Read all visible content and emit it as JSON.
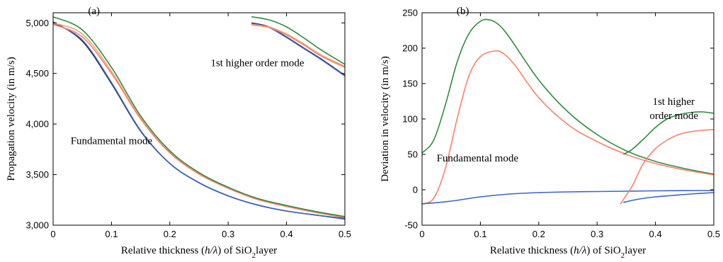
{
  "colors": {
    "black": "#1a1a2e",
    "red": "#ff7f6a",
    "orange": "#f5a46f",
    "green": "#2e8b3e",
    "blue": "#3a66c4"
  },
  "chart_data": [
    {
      "type": "line",
      "panel_label": "(a)",
      "xlabel": {
        "pre": "Relative thickness (",
        "var": "h/λ",
        "post": ") of SiO",
        "sub": "2",
        "tail": "layer"
      },
      "ylabel": "Propagation velocity (in m/s)",
      "xlim": [
        0,
        0.5
      ],
      "ylim": [
        3000,
        5100
      ],
      "xticks": [
        0,
        0.1,
        0.2,
        0.3,
        0.4,
        0.5
      ],
      "xtick_labels": [
        "0",
        "0.1",
        "0.2",
        "0.3",
        "0.4",
        "0.5"
      ],
      "yticks": [
        3000,
        3500,
        4000,
        4500,
        5000
      ],
      "ytick_labels": [
        "3,000",
        "3,500",
        "4,000",
        "4,500",
        "5,000"
      ],
      "annotations": [
        {
          "text": "1st higher order mode",
          "x": 0.27,
          "y": 4570
        },
        {
          "text": "Fundamental mode",
          "x": 0.03,
          "y": 3800
        }
      ],
      "series": [
        {
          "color": "black",
          "group": "fundamental",
          "x": [
            0,
            0.05,
            0.1,
            0.15,
            0.2,
            0.25,
            0.3,
            0.35,
            0.4,
            0.45,
            0.5
          ],
          "y": [
            5010,
            4820,
            4400,
            3930,
            3610,
            3420,
            3290,
            3200,
            3140,
            3100,
            3065
          ]
        },
        {
          "color": "blue",
          "group": "fundamental",
          "x": [
            0,
            0.05,
            0.1,
            0.15,
            0.2,
            0.25,
            0.3,
            0.35,
            0.4,
            0.45,
            0.5
          ],
          "y": [
            5000,
            4830,
            4410,
            3935,
            3610,
            3420,
            3290,
            3200,
            3140,
            3100,
            3060
          ]
        },
        {
          "color": "orange",
          "group": "fundamental",
          "x": [
            0,
            0.05,
            0.1,
            0.15,
            0.2,
            0.25,
            0.3,
            0.35,
            0.4,
            0.45,
            0.5
          ],
          "y": [
            5000,
            4890,
            4520,
            4060,
            3720,
            3510,
            3370,
            3260,
            3190,
            3130,
            3080
          ]
        },
        {
          "color": "red",
          "group": "fundamental",
          "x": [
            0,
            0.05,
            0.1,
            0.15,
            0.2,
            0.25,
            0.3,
            0.35,
            0.4,
            0.45,
            0.5
          ],
          "y": [
            4985,
            4860,
            4500,
            4050,
            3715,
            3505,
            3365,
            3255,
            3185,
            3125,
            3075
          ]
        },
        {
          "color": "green",
          "group": "fundamental",
          "x": [
            0,
            0.05,
            0.1,
            0.15,
            0.2,
            0.25,
            0.3,
            0.35,
            0.4,
            0.45,
            0.5
          ],
          "y": [
            5060,
            4930,
            4560,
            4080,
            3735,
            3520,
            3375,
            3265,
            3195,
            3135,
            3085
          ]
        },
        {
          "color": "black",
          "group": "higher",
          "x": [
            0.34,
            0.37,
            0.4,
            0.43,
            0.46,
            0.5
          ],
          "y": [
            5000,
            4960,
            4860,
            4750,
            4640,
            4480
          ]
        },
        {
          "color": "blue",
          "group": "higher",
          "x": [
            0.34,
            0.37,
            0.4,
            0.43,
            0.46,
            0.5
          ],
          "y": [
            4995,
            4955,
            4855,
            4745,
            4635,
            4475
          ]
        },
        {
          "color": "orange",
          "group": "higher",
          "x": [
            0.34,
            0.37,
            0.4,
            0.43,
            0.46,
            0.5
          ],
          "y": [
            4985,
            4960,
            4890,
            4790,
            4680,
            4570
          ]
        },
        {
          "color": "red",
          "group": "higher",
          "x": [
            0.34,
            0.37,
            0.4,
            0.43,
            0.46,
            0.5
          ],
          "y": [
            4980,
            4955,
            4880,
            4780,
            4670,
            4560
          ]
        },
        {
          "color": "green",
          "group": "higher",
          "x": [
            0.34,
            0.37,
            0.4,
            0.43,
            0.46,
            0.5
          ],
          "y": [
            5060,
            5030,
            4960,
            4850,
            4730,
            4590
          ]
        }
      ]
    },
    {
      "type": "line",
      "panel_label": "(b)",
      "xlabel": {
        "pre": "Relative thickness (",
        "var": "h/λ",
        "post": ") of SiO",
        "sub": "2",
        "tail": "layer"
      },
      "ylabel": "Deviation in velocity (in m/s)",
      "xlim": [
        0,
        0.5
      ],
      "ylim": [
        -50,
        250
      ],
      "xticks": [
        0,
        0.1,
        0.2,
        0.3,
        0.4,
        0.5
      ],
      "xtick_labels": [
        "0",
        "0.1",
        "0.2",
        "0.3",
        "0.4",
        "0.5"
      ],
      "yticks": [
        -50,
        0,
        50,
        100,
        150,
        200,
        250
      ],
      "ytick_labels": [
        "-50",
        "0",
        "50",
        "100",
        "150",
        "200",
        "250"
      ],
      "annotations": [
        {
          "text": "1st higher",
          "x": 0.395,
          "y": 120
        },
        {
          "text": "order mode",
          "x": 0.39,
          "y": 100
        },
        {
          "text": "Fundamental mode",
          "x": 0.025,
          "y": 40
        }
      ],
      "series": [
        {
          "color": "green",
          "group": "fundamental",
          "x": [
            0,
            0.02,
            0.04,
            0.06,
            0.08,
            0.1,
            0.115,
            0.13,
            0.15,
            0.2,
            0.25,
            0.3,
            0.35,
            0.4,
            0.45,
            0.5
          ],
          "y": [
            52,
            70,
            120,
            180,
            220,
            238,
            240,
            234,
            215,
            155,
            110,
            78,
            55,
            40,
            30,
            22
          ]
        },
        {
          "color": "red",
          "group": "fundamental",
          "x": [
            0,
            0.02,
            0.04,
            0.06,
            0.08,
            0.1,
            0.125,
            0.14,
            0.16,
            0.2,
            0.25,
            0.3,
            0.35,
            0.4,
            0.45,
            0.5
          ],
          "y": [
            -20,
            -12,
            30,
            100,
            160,
            188,
            196,
            192,
            175,
            130,
            92,
            68,
            50,
            37,
            28,
            21
          ]
        },
        {
          "color": "blue",
          "group": "fundamental",
          "x": [
            0,
            0.05,
            0.1,
            0.15,
            0.2,
            0.25,
            0.3,
            0.35,
            0.4,
            0.45,
            0.5
          ],
          "y": [
            -20,
            -16,
            -10,
            -6,
            -4,
            -3,
            -2.5,
            -2,
            -1.5,
            -1.2,
            -1
          ]
        },
        {
          "color": "green",
          "group": "higher",
          "x": [
            0.345,
            0.36,
            0.38,
            0.4,
            0.42,
            0.44,
            0.46,
            0.48,
            0.5
          ],
          "y": [
            50,
            57,
            72,
            88,
            100,
            106,
            109,
            110,
            108
          ]
        },
        {
          "color": "red",
          "group": "higher",
          "x": [
            0.34,
            0.36,
            0.37,
            0.38,
            0.4,
            0.42,
            0.44,
            0.46,
            0.48,
            0.5
          ],
          "y": [
            -20,
            5,
            22,
            38,
            58,
            70,
            78,
            82,
            84,
            85
          ]
        },
        {
          "color": "blue",
          "group": "higher",
          "x": [
            0.345,
            0.36,
            0.38,
            0.4,
            0.43,
            0.46,
            0.5
          ],
          "y": [
            -18,
            -15,
            -12,
            -10,
            -8,
            -6,
            -4
          ]
        }
      ]
    }
  ]
}
